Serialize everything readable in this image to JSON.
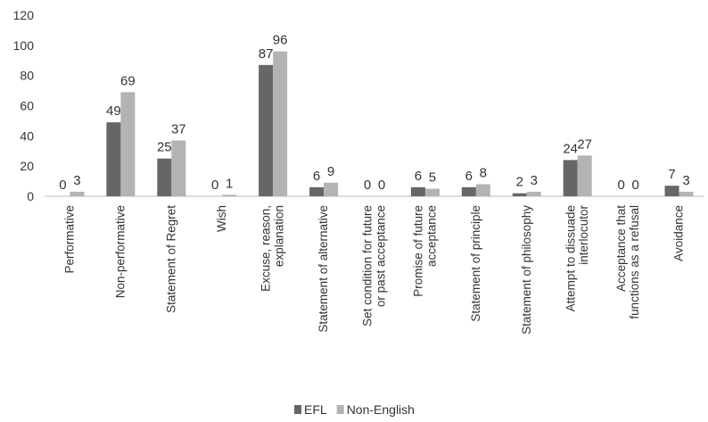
{
  "chart_data": {
    "type": "bar",
    "categories": [
      "Performative",
      "Non-performative",
      "Statement of Regret",
      "Wish",
      "Excuse, reason,\nexplanation",
      "Statement of alternative",
      "Set condition for future\nor past acceptance",
      "Promise of future\nacceptance",
      "Statement of principle",
      "Statement of philosophy",
      "Attempt to dissuade\ninterlocutor",
      "Acceptance that\nfunctions as a refusal",
      "Avoidance"
    ],
    "series": [
      {
        "name": "EFL",
        "color": "#666666",
        "values": [
          0,
          49,
          25,
          0,
          87,
          6,
          0,
          6,
          6,
          2,
          24,
          0,
          7
        ]
      },
      {
        "name": "Non-English",
        "color": "#b3b3b3",
        "values": [
          3,
          69,
          37,
          1,
          96,
          9,
          0,
          5,
          8,
          3,
          27,
          0,
          3
        ]
      }
    ],
    "ylim": [
      0,
      120
    ],
    "yticks": [
      0,
      20,
      40,
      60,
      80,
      100,
      120
    ],
    "grid": false,
    "legend": "bottom"
  }
}
